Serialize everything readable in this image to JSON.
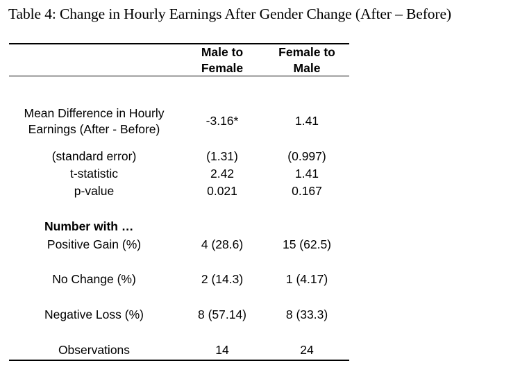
{
  "table": {
    "title": "Table 4: Change in Hourly Earnings After Gender Change (After – Before)",
    "headers": {
      "col1_line1": "Male to",
      "col1_line2": "Female",
      "col2_line1": "Female to",
      "col2_line2": "Male"
    },
    "rows": {
      "mean_diff": {
        "label_line1": "Mean Difference in Hourly",
        "label_line2": "Earnings (After - Before)",
        "mtf": "-3.16*",
        "ftm": "1.41"
      },
      "std_error": {
        "label": "(standard error)",
        "mtf": "(1.31)",
        "ftm": "(0.997)"
      },
      "t_stat": {
        "label": "t-statistic",
        "mtf": "2.42",
        "ftm": "1.41"
      },
      "p_value": {
        "label": "p-value",
        "mtf": "0.021",
        "ftm": "0.167"
      },
      "number_with": {
        "label": "Number with …"
      },
      "positive_gain": {
        "label": "Positive Gain (%)",
        "mtf": "4 (28.6)",
        "ftm": "15 (62.5)"
      },
      "no_change": {
        "label": "No Change (%)",
        "mtf": "2 (14.3)",
        "ftm": "1 (4.17)"
      },
      "negative_loss": {
        "label": "Negative Loss (%)",
        "mtf": "8 (57.14)",
        "ftm": "8 (33.3)"
      },
      "observations": {
        "label": "Observations",
        "mtf": "14",
        "ftm": "24"
      }
    }
  }
}
